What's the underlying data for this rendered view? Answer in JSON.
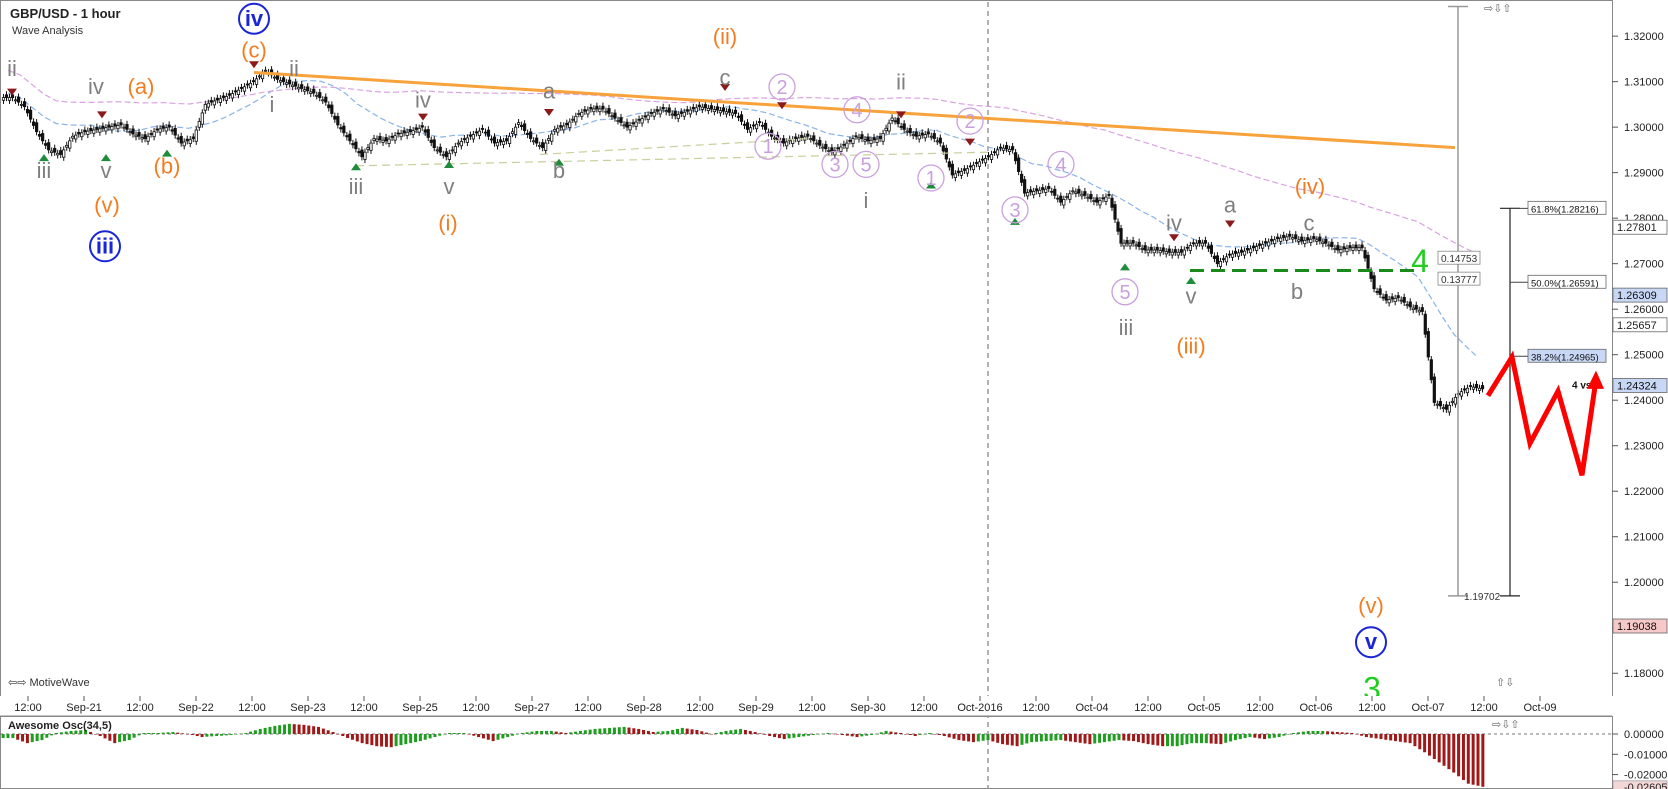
{
  "header": {
    "symbol_title": "GBP/USD - 1 hour",
    "study": "Wave Analysis"
  },
  "footer": {
    "brand": "MotiveWave",
    "nav_arrows": "⇦⇨",
    "zoom_arrows": "⇧⇩"
  },
  "window_controls": "⇨⇩⇧",
  "oscillator": {
    "title": "Awesome Osc(34,5)",
    "axis_labels": [
      "0.00000",
      "-0.01000",
      "-0.02000",
      "-0.02605"
    ]
  },
  "chart_data": {
    "type": "candlestick",
    "title": "GBP/USD - 1 hour",
    "x_ticks": [
      "12:00",
      "Sep-21",
      "12:00",
      "Sep-22",
      "12:00",
      "Sep-23",
      "12:00",
      "Sep-25",
      "12:00",
      "Sep-27",
      "12:00",
      "Sep-28",
      "12:00",
      "Sep-29",
      "12:00",
      "Sep-30",
      "12:00",
      "Oct-2016",
      "12:00",
      "Oct-04",
      "12:00",
      "Oct-05",
      "12:00",
      "Oct-06",
      "12:00",
      "Oct-07",
      "12:00",
      "Oct-09"
    ],
    "y_ticks": [
      "1.32000",
      "1.31000",
      "1.30000",
      "1.29000",
      "1.28000",
      "1.27000",
      "1.26000",
      "1.25000",
      "1.24000",
      "1.23000",
      "1.22000",
      "1.21000",
      "1.20000",
      "1.19000",
      "1.18000"
    ],
    "ylim": [
      1.175,
      1.3275
    ],
    "price_tags": [
      {
        "text": "1.27801",
        "style": "white"
      },
      {
        "text": "1.26309",
        "style": "blue"
      },
      {
        "text": "1.25657",
        "style": "white"
      },
      {
        "text": "1.24324",
        "style": "blue"
      },
      {
        "text": "1.19038",
        "style": "red"
      }
    ],
    "fib_levels": [
      {
        "label": "61.8%(1.28216)",
        "value": 1.28216
      },
      {
        "label": "50.0%(1.26591)",
        "value": 1.26591
      },
      {
        "label": "38.2%(1.24965)",
        "value": 1.24965
      }
    ],
    "annotations": [
      "0.14753",
      "0.13777",
      "1.19702",
      "4 vs 3"
    ],
    "price_path": [
      1.3065,
      1.3045,
      1.299,
      1.295,
      1.294,
      1.298,
      1.299,
      1.2995,
      1.3,
      1.3005,
      1.2985,
      1.2975,
      1.2995,
      1.3,
      1.2965,
      1.2975,
      1.305,
      1.306,
      1.307,
      1.3085,
      1.31,
      1.3125,
      1.3105,
      1.3095,
      1.3085,
      1.3075,
      1.3055,
      1.3005,
      1.297,
      1.2935,
      1.2975,
      1.297,
      1.2985,
      1.299,
      1.3,
      1.2955,
      1.2935,
      1.2965,
      1.298,
      1.2995,
      1.2965,
      1.297,
      1.301,
      1.2975,
      1.2955,
      1.2995,
      1.3005,
      1.303,
      1.304,
      1.304,
      1.302,
      1.3,
      1.3015,
      1.303,
      1.304,
      1.3025,
      1.3035,
      1.3045,
      1.304,
      1.3035,
      1.303,
      1.2995,
      1.301,
      1.298,
      1.2965,
      1.2975,
      1.298,
      1.296,
      1.2945,
      1.296,
      1.298,
      1.297,
      1.2975,
      1.302,
      1.2995,
      1.298,
      1.2985,
      1.2965,
      1.2895,
      1.2905,
      1.292,
      1.2935,
      1.2955,
      1.295,
      1.2855,
      1.286,
      1.2865,
      1.2835,
      1.286,
      1.285,
      1.2835,
      1.285,
      1.2745,
      1.2745,
      1.273,
      1.273,
      1.2725,
      1.2725,
      1.2745,
      1.2745,
      1.27,
      1.272,
      1.2725,
      1.2735,
      1.2745,
      1.2755,
      1.276,
      1.275,
      1.2755,
      1.2745,
      1.273,
      1.2735,
      1.2735,
      1.2645,
      1.262,
      1.2625,
      1.2605,
      1.2595,
      1.2395,
      1.238,
      1.2415,
      1.243,
      1.2425
    ],
    "awesome_osc": [
      -0.002,
      -0.0045,
      -0.003,
      0.0005,
      0.0015,
      0.002,
      -0.001,
      -0.0045,
      -0.003,
      0.0005,
      0.0005,
      0.001,
      0.0,
      -0.0015,
      -0.001,
      -0.0005,
      0.0005,
      0.0025,
      0.004,
      0.005,
      0.0045,
      0.0035,
      0.001,
      -0.002,
      -0.0045,
      -0.006,
      -0.0065,
      -0.005,
      -0.0035,
      -0.0015,
      0.0005,
      0.0005,
      -0.0015,
      -0.0035,
      -0.0015,
      0.0005,
      0.0015,
      0.0015,
      0.0005,
      0.0015,
      0.0025,
      0.003,
      0.0035,
      0.0025,
      0.001,
      0.0015,
      0.003,
      0.002,
      0.0,
      0.0015,
      0.0025,
      0.001,
      -0.001,
      -0.0025,
      -0.0015,
      -0.0005,
      0.0005,
      -0.0005,
      -0.0015,
      -0.0005,
      0.0015,
      0.0005,
      -0.001,
      0.0005,
      -0.001,
      -0.003,
      -0.004,
      -0.003,
      -0.005,
      -0.006,
      -0.004,
      -0.0035,
      -0.003,
      -0.004,
      -0.005,
      -0.004,
      -0.003,
      -0.0035,
      -0.005,
      -0.006,
      -0.006,
      -0.0045,
      -0.0045,
      -0.005,
      -0.003,
      -0.0015,
      -0.0025,
      -0.0015,
      0.0005,
      0.0015,
      0.0015,
      0.001,
      0.0005,
      -0.0015,
      -0.0025,
      -0.0035,
      -0.0045,
      -0.009,
      -0.014,
      -0.019,
      -0.0245,
      -0.026
    ],
    "labels": [
      {
        "t": "ii",
        "x": 12,
        "p": 1.3115,
        "c": "gray",
        "s": 22
      },
      {
        "t": "iii",
        "x": 44,
        "p": 1.289,
        "c": "gray",
        "s": 22
      },
      {
        "t": "iv",
        "x": 96,
        "p": 1.3075,
        "c": "gray",
        "s": 22
      },
      {
        "t": "v",
        "x": 106,
        "p": 1.289,
        "c": "gray",
        "s": 22
      },
      {
        "t": "(a)",
        "x": 141,
        "p": 1.3075,
        "c": "orange",
        "s": 22
      },
      {
        "t": "(b)",
        "x": 167,
        "p": 1.29,
        "c": "orange",
        "s": 22
      },
      {
        "t": "(v)",
        "x": 107,
        "p": 1.2815,
        "c": "orange",
        "s": 22
      },
      {
        "t": "iii",
        "x": 105,
        "p": 1.2725,
        "c": "blue",
        "s": 22,
        "circle": true
      },
      {
        "t": "iv",
        "x": 254,
        "p": 1.3225,
        "c": "blue",
        "s": 22,
        "circle": true
      },
      {
        "t": "(c)",
        "x": 254,
        "p": 1.3155,
        "c": "orange",
        "s": 22
      },
      {
        "t": "ii",
        "x": 294,
        "p": 1.3115,
        "c": "gray",
        "s": 22
      },
      {
        "t": "i",
        "x": 272,
        "p": 1.3035,
        "c": "gray",
        "s": 22
      },
      {
        "t": "iii",
        "x": 356,
        "p": 1.2855,
        "c": "gray",
        "s": 22
      },
      {
        "t": "iv",
        "x": 423,
        "p": 1.3045,
        "c": "gray",
        "s": 22
      },
      {
        "t": "v",
        "x": 449,
        "p": 1.2855,
        "c": "gray",
        "s": 22
      },
      {
        "t": "(i)",
        "x": 448,
        "p": 1.2775,
        "c": "orange",
        "s": 22
      },
      {
        "t": "a",
        "x": 549,
        "p": 1.3065,
        "c": "gray",
        "s": 22
      },
      {
        "t": "b",
        "x": 559,
        "p": 1.289,
        "c": "gray",
        "s": 22
      },
      {
        "t": "(ii)",
        "x": 725,
        "p": 1.3185,
        "c": "orange",
        "s": 22
      },
      {
        "t": "c",
        "x": 725,
        "p": 1.3095,
        "c": "gray",
        "s": 22
      },
      {
        "t": "2",
        "x": 782,
        "p": 1.3075,
        "c": "violet",
        "s": 20,
        "circle": true
      },
      {
        "t": "1",
        "x": 768,
        "p": 1.2945,
        "c": "violet",
        "s": 20,
        "circle": true
      },
      {
        "t": "4",
        "x": 857,
        "p": 1.3025,
        "c": "violet",
        "s": 20,
        "circle": true
      },
      {
        "t": "3",
        "x": 835,
        "p": 1.2905,
        "c": "violet",
        "s": 20,
        "circle": true
      },
      {
        "t": "5",
        "x": 866,
        "p": 1.2905,
        "c": "violet",
        "s": 20,
        "circle": true
      },
      {
        "t": "i",
        "x": 866,
        "p": 1.2825,
        "c": "gray",
        "s": 22
      },
      {
        "t": "ii",
        "x": 901,
        "p": 1.3085,
        "c": "gray",
        "s": 22
      },
      {
        "t": "1",
        "x": 931,
        "p": 1.2875,
        "c": "violet",
        "s": 20,
        "circle": true
      },
      {
        "t": "2",
        "x": 970,
        "p": 1.3,
        "c": "violet",
        "s": 20,
        "circle": true
      },
      {
        "t": "4",
        "x": 1061,
        "p": 1.2905,
        "c": "violet",
        "s": 20,
        "circle": true
      },
      {
        "t": "3",
        "x": 1015,
        "p": 1.2805,
        "c": "violet",
        "s": 20,
        "circle": true
      },
      {
        "t": "5",
        "x": 1125,
        "p": 1.2625,
        "c": "violet",
        "s": 20,
        "circle": true
      },
      {
        "t": "iii",
        "x": 1126,
        "p": 1.2545,
        "c": "gray",
        "s": 22
      },
      {
        "t": "iv",
        "x": 1174,
        "p": 1.2775,
        "c": "gray",
        "s": 22
      },
      {
        "t": "v",
        "x": 1191,
        "p": 1.2615,
        "c": "gray",
        "s": 22
      },
      {
        "t": "(iii)",
        "x": 1191,
        "p": 1.2505,
        "c": "orange",
        "s": 22
      },
      {
        "t": "a",
        "x": 1230,
        "p": 1.2815,
        "c": "gray",
        "s": 22
      },
      {
        "t": "(iv)",
        "x": 1310,
        "p": 1.2855,
        "c": "orange",
        "s": 22
      },
      {
        "t": "c",
        "x": 1309,
        "p": 1.2775,
        "c": "gray",
        "s": 22
      },
      {
        "t": "b",
        "x": 1297,
        "p": 1.2625,
        "c": "gray",
        "s": 22
      },
      {
        "t": "4",
        "x": 1420,
        "p": 1.2695,
        "c": "green",
        "s": 32
      },
      {
        "t": "(v)",
        "x": 1371,
        "p": 1.1935,
        "c": "orange",
        "s": 22
      },
      {
        "t": "v",
        "x": 1371,
        "p": 1.1855,
        "c": "blue",
        "s": 22,
        "circle": true
      },
      {
        "t": "3",
        "x": 1372,
        "p": 1.1755,
        "c": "green",
        "s": 32
      }
    ]
  },
  "colors": {
    "orange": "#f47c20",
    "gray": "#7f7f7f",
    "blue": "#1a25d6",
    "violet": "#c9a0dc",
    "green": "#22cc22",
    "red": "#ff0000",
    "trendline": "#f7a23a",
    "ma_blue": "#8ab4e8",
    "ma_violet": "#d9a3e0",
    "support_green": "#1a8a1a",
    "osc_up": "#1e9e1e",
    "osc_down": "#a01818"
  }
}
